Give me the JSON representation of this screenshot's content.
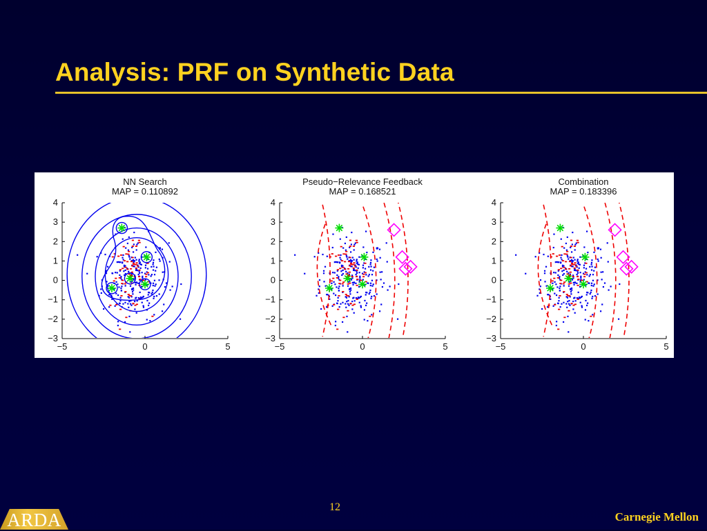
{
  "slide": {
    "title": "Analysis: PRF on Synthetic Data",
    "page_number": "12",
    "logo_text": "ARDA",
    "organization": "Carnegie Mellon"
  },
  "colors": {
    "background": "#000038",
    "title": "#ffd21f",
    "rule": "#e8c32a",
    "blue_points": "#0000ee",
    "red_points": "#ee0000",
    "green_marks": "#00dd00",
    "magenta_marks": "#ff00ff"
  },
  "chart_data": [
    {
      "type": "scatter",
      "title": "NN Search",
      "subtitle": "MAP = 0.110892",
      "xlim": [
        -5,
        5
      ],
      "ylim": [
        -3,
        4
      ],
      "xticks": [
        -5,
        0,
        5
      ],
      "yticks": [
        4,
        3,
        2,
        1,
        0,
        -1,
        -2,
        -3
      ],
      "grid": false,
      "contour_style": "solid-blue",
      "series": [
        {
          "values_type": "green-star-circled",
          "points": [
            [
              -1.4,
              2.7
            ],
            [
              0.1,
              1.2
            ],
            [
              -0.9,
              0.1
            ],
            [
              0.0,
              -0.2
            ],
            [
              -2.0,
              -0.4
            ]
          ]
        }
      ]
    },
    {
      "type": "scatter",
      "title": "Pseudo−Relevance Feedback",
      "subtitle": "MAP = 0.168521",
      "xlim": [
        -5,
        5
      ],
      "ylim": [
        -3,
        4
      ],
      "xticks": [
        -5,
        0,
        5
      ],
      "yticks": [
        4,
        3,
        2,
        1,
        0,
        -1,
        -2,
        -3
      ],
      "grid": false,
      "contour_style": "dashed-red",
      "series": [
        {
          "values_type": "green-star",
          "points": [
            [
              -1.4,
              2.7
            ],
            [
              0.1,
              1.2
            ],
            [
              -0.9,
              0.1
            ],
            [
              0.0,
              -0.2
            ],
            [
              -2.0,
              -0.4
            ]
          ]
        },
        {
          "values_type": "magenta-diamond",
          "points": [
            [
              1.9,
              2.6
            ],
            [
              2.4,
              1.2
            ],
            [
              2.6,
              0.6
            ],
            [
              2.9,
              0.7
            ]
          ]
        }
      ]
    },
    {
      "type": "scatter",
      "title": "Combination",
      "subtitle": "MAP = 0.183396",
      "xlim": [
        -5,
        5
      ],
      "ylim": [
        -3,
        4
      ],
      "xticks": [
        -5,
        0,
        5
      ],
      "yticks": [
        4,
        3,
        2,
        1,
        0,
        -1,
        -2,
        -3
      ],
      "grid": false,
      "contour_style": "dashed-red",
      "series": [
        {
          "values_type": "green-star",
          "points": [
            [
              -1.4,
              2.7
            ],
            [
              0.1,
              1.2
            ],
            [
              -0.9,
              0.1
            ],
            [
              0.0,
              -0.2
            ],
            [
              -2.0,
              -0.4
            ]
          ]
        },
        {
          "values_type": "magenta-diamond",
          "points": [
            [
              1.9,
              2.6
            ],
            [
              2.4,
              1.2
            ],
            [
              2.6,
              0.6
            ],
            [
              2.9,
              0.7
            ]
          ]
        }
      ]
    }
  ]
}
